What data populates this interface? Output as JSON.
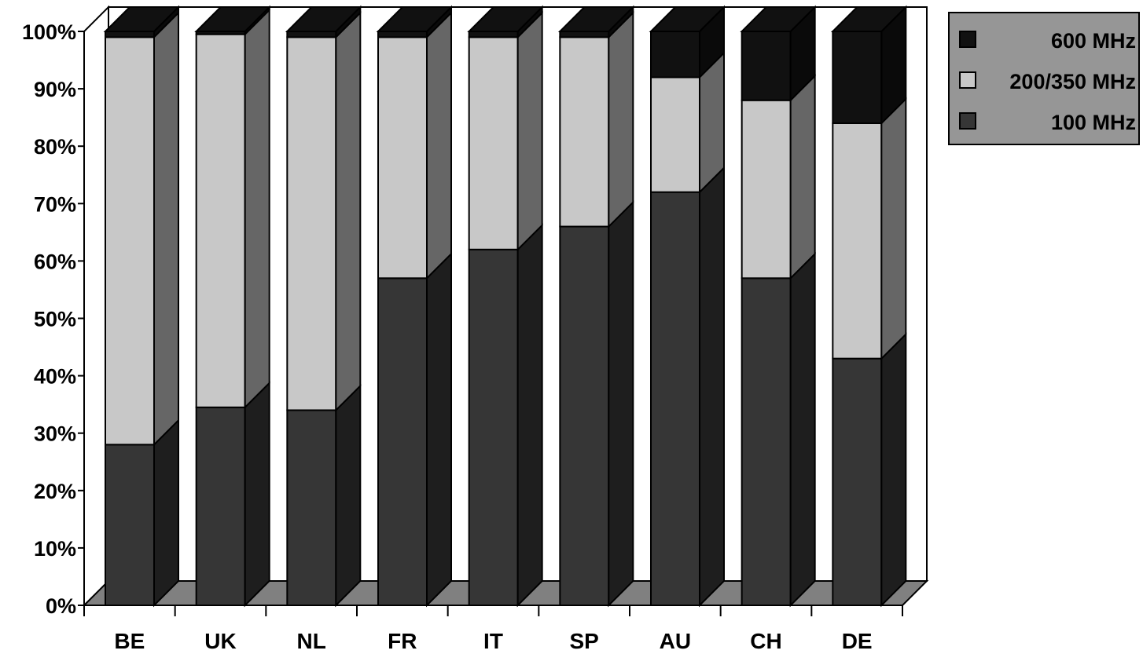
{
  "chart_data": {
    "type": "bar",
    "stacked": true,
    "three_d": true,
    "categories": [
      "BE",
      "UK",
      "NL",
      "FR",
      "IT",
      "SP",
      "AU",
      "CH",
      "DE"
    ],
    "series": [
      {
        "name": "100 MHz",
        "values": [
          28,
          34.5,
          34,
          57,
          62,
          66,
          72,
          57,
          43
        ],
        "color": "#363636",
        "side": "#1e1e1e"
      },
      {
        "name": "200/350 MHz",
        "values": [
          71,
          65,
          65,
          42,
          37,
          33,
          20,
          31,
          41
        ],
        "color": "#c8c8c8",
        "side": "#666666"
      },
      {
        "name": "600 MHz",
        "values": [
          1,
          0.5,
          1,
          1,
          1,
          1,
          8,
          12,
          16
        ],
        "color": "#111111",
        "side": "#0a0a0a"
      }
    ],
    "y_ticks": [
      "0%",
      "10%",
      "20%",
      "30%",
      "40%",
      "50%",
      "60%",
      "70%",
      "80%",
      "90%",
      "100%"
    ],
    "ylim": [
      0,
      100
    ],
    "legend_position": "top-right",
    "legend_order": [
      "600 MHz",
      "200/350 MHz",
      "100 MHz"
    ],
    "colors": {
      "wall": "#ffffff",
      "floor": "#808080",
      "legend_bg": "#969696"
    }
  }
}
